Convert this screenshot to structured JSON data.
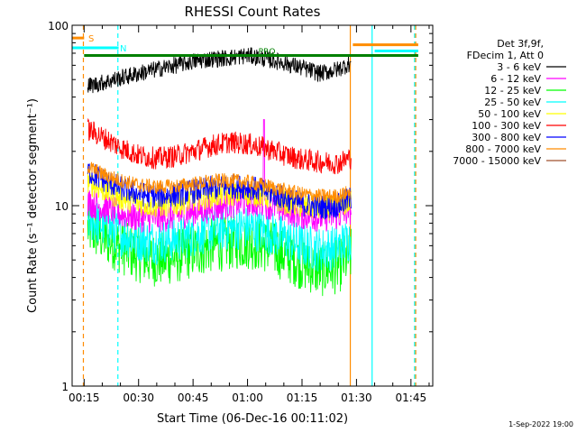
{
  "chart_data": {
    "type": "line",
    "title": "RHESSI Count Rates",
    "xlabel": "Start Time (06-Dec-16 00:11:02)",
    "ylabel": "Count Rate (s⁻¹ detector segment⁻¹)",
    "yscale": "log",
    "ylim": [
      1,
      100
    ],
    "xlim_minutes": [
      11.7,
      111
    ],
    "x_unit": "minutes after 00:00",
    "x_ticks": [
      {
        "minute": 15,
        "label": "00:15"
      },
      {
        "minute": 30,
        "label": "00:30"
      },
      {
        "minute": 45,
        "label": "00:45"
      },
      {
        "minute": 60,
        "label": "01:00"
      },
      {
        "minute": 75,
        "label": "01:15"
      },
      {
        "minute": 90,
        "label": "01:30"
      },
      {
        "minute": 105,
        "label": "01:45"
      }
    ],
    "y_ticks": [
      {
        "value": 1,
        "label": "1"
      },
      {
        "value": 10,
        "label": "10"
      },
      {
        "value": 100,
        "label": "100"
      }
    ],
    "legend": {
      "header": [
        "Det 3f,9f,",
        "FDecim 1, Att 0"
      ],
      "placement": "right"
    },
    "series": [
      {
        "name": "3 - 6 keV",
        "color": "#000000",
        "x": [
          16,
          20,
          25,
          30,
          35,
          40,
          45,
          50,
          55,
          60,
          65,
          70,
          75,
          80,
          85,
          88.5
        ],
        "values": [
          46,
          48,
          51,
          54,
          57,
          60,
          63,
          65,
          66,
          68,
          65,
          62,
          58,
          54,
          57,
          62
        ]
      },
      {
        "name": "6 - 12 keV",
        "color": "#ff00ff",
        "x": [
          16,
          20,
          25,
          30,
          35,
          40,
          45,
          50,
          55,
          60,
          65,
          70,
          75,
          80,
          85,
          88.5
        ],
        "values": [
          10.5,
          9.8,
          9.0,
          8.6,
          8.5,
          8.8,
          9.3,
          9.7,
          10.2,
          10.5,
          10.2,
          9.5,
          8.9,
          8.6,
          8.8,
          9.5
        ]
      },
      {
        "name": "12 - 25 keV",
        "color": "#00ff00",
        "x": [
          16,
          20,
          25,
          30,
          35,
          40,
          45,
          50,
          55,
          60,
          65,
          70,
          75,
          80,
          85,
          88.5
        ],
        "values": [
          7.5,
          6.8,
          5.9,
          5.3,
          5.0,
          5.2,
          5.6,
          6.0,
          6.2,
          6.3,
          6.0,
          5.4,
          4.8,
          4.4,
          4.6,
          5.3
        ]
      },
      {
        "name": "25 - 50 keV",
        "color": "#00ffff",
        "x": [
          16,
          20,
          25,
          30,
          35,
          40,
          45,
          50,
          55,
          60,
          65,
          70,
          75,
          80,
          85,
          88.5
        ],
        "values": [
          8.5,
          7.8,
          7.0,
          6.5,
          6.3,
          6.5,
          6.9,
          7.3,
          7.5,
          7.6,
          7.2,
          6.6,
          6.0,
          5.7,
          5.9,
          6.6
        ]
      },
      {
        "name": "50 - 100 keV",
        "color": "#ffff00",
        "x": [
          16,
          20,
          25,
          30,
          35,
          40,
          45,
          50,
          55,
          60,
          65,
          70,
          75,
          80,
          85,
          88.5
        ],
        "values": [
          13.5,
          12.3,
          11.0,
          10.3,
          10.0,
          10.2,
          10.8,
          11.3,
          11.6,
          11.7,
          11.3,
          10.5,
          9.9,
          9.6,
          9.8,
          10.6
        ]
      },
      {
        "name": "100 - 300 keV",
        "color": "#ff0000",
        "x": [
          16,
          20,
          25,
          30,
          35,
          40,
          45,
          50,
          55,
          60,
          65,
          70,
          75,
          80,
          85,
          88.5
        ],
        "values": [
          26.5,
          24.0,
          21.0,
          19.0,
          18.3,
          18.8,
          20.0,
          21.5,
          22.5,
          22.0,
          20.8,
          19.2,
          18.0,
          17.5,
          17.2,
          18.5
        ]
      },
      {
        "name": "300 - 800 keV",
        "color": "#0000ff",
        "x": [
          16,
          20,
          25,
          30,
          35,
          40,
          45,
          50,
          55,
          60,
          65,
          70,
          75,
          80,
          85,
          88.5
        ],
        "values": [
          15.5,
          14.0,
          12.5,
          11.6,
          11.3,
          11.5,
          12.0,
          12.5,
          12.8,
          12.7,
          12.0,
          11.0,
          10.2,
          9.8,
          10.0,
          11.0
        ]
      },
      {
        "name": "800 - 7000 keV",
        "color": "#ff8c00",
        "x": [
          16,
          20,
          25,
          30,
          35,
          40,
          45,
          50,
          55,
          60,
          65,
          70,
          75,
          80,
          85,
          88.5
        ],
        "values": [
          16.5,
          15.0,
          13.8,
          13.0,
          12.7,
          12.8,
          13.2,
          13.6,
          13.8,
          13.5,
          12.9,
          12.2,
          11.6,
          11.3,
          11.3,
          12.0
        ]
      },
      {
        "name": "7000 - 15000 keV",
        "color": "#a0522d",
        "x": [],
        "values": []
      }
    ],
    "level_lines": [
      {
        "label": "S",
        "color": "#ff8c00",
        "segments": [
          [
            11.7,
            15,
            85
          ],
          [
            89,
            107,
            78
          ]
        ]
      },
      {
        "label": "N",
        "color": "#00ffff",
        "segments": [
          [
            11.7,
            24.5,
            75
          ],
          [
            95,
            107,
            72
          ]
        ]
      },
      {
        "label": "",
        "color": "#008000",
        "segments": [
          [
            15,
            107,
            68
          ]
        ]
      }
    ],
    "annotations": [
      {
        "text": "PRO",
        "color": "#008000",
        "x": 63,
        "y": 69
      }
    ],
    "vertical_markers": [
      {
        "minute": 14.8,
        "color": "#ff8c00",
        "style": "dashed"
      },
      {
        "minute": 24.3,
        "color": "#00ffff",
        "style": "dashed"
      },
      {
        "minute": 88.3,
        "color": "#ff8c00",
        "style": "solid"
      },
      {
        "minute": 94.3,
        "color": "#00ffff",
        "style": "solid"
      },
      {
        "minute": 106.0,
        "color": "#00ffff",
        "style": "dashed"
      },
      {
        "minute": 106.3,
        "color": "#ff8c00",
        "style": "dashed"
      }
    ],
    "spike": {
      "series": "6 - 12 keV",
      "minute": 64.5,
      "value": 30
    }
  },
  "footer": {
    "date": "1-Sep-2022 19:00"
  }
}
